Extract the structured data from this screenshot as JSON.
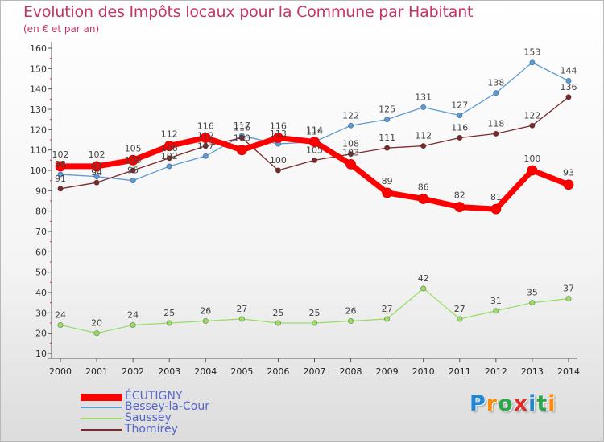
{
  "chart_data": {
    "type": "line",
    "title": "Evolution des Impôts locaux pour la Commune par Habitant",
    "subtitle": "(en € et par an)",
    "x": [
      "2000",
      "2001",
      "2002",
      "2003",
      "2004",
      "2005",
      "2006",
      "2007",
      "2008",
      "2009",
      "2010",
      "2011",
      "2012",
      "2013",
      "2014"
    ],
    "ylim": [
      10,
      160
    ],
    "yticks": [
      10,
      20,
      30,
      40,
      50,
      60,
      70,
      80,
      90,
      100,
      110,
      120,
      130,
      140,
      150,
      160
    ],
    "grid": false,
    "legend_position": "bottom-left",
    "series": [
      {
        "name": "ÉCUTIGNY",
        "color": "#ff0000",
        "values": [
          102,
          102,
          105,
          112,
          116,
          110,
          116,
          114,
          103,
          89,
          86,
          82,
          81,
          100,
          93
        ]
      },
      {
        "name": "Bessey-la-Cour",
        "color": "#5b9bd5",
        "values": [
          98,
          97,
          95,
          102,
          107,
          117,
          113,
          114,
          122,
          125,
          131,
          127,
          138,
          153,
          144
        ]
      },
      {
        "name": "Saussey",
        "color": "#99dd66",
        "values": [
          24,
          20,
          24,
          25,
          26,
          27,
          25,
          25,
          26,
          27,
          42,
          27,
          31,
          35,
          37
        ]
      },
      {
        "name": "Thomirey",
        "color": "#7a2a2a",
        "values": [
          91,
          94,
          100,
          106,
          112,
          116,
          100,
          105,
          108,
          111,
          112,
          116,
          118,
          122,
          136
        ]
      }
    ],
    "data_labels": {
      "ÉCUTIGNY": [
        "102",
        "102",
        "105",
        "112",
        "116",
        "110",
        "116",
        "114",
        "103",
        "89",
        "86",
        "82",
        "81",
        "100",
        "93"
      ],
      "Bessey-la-Cour": [
        "98",
        "97",
        "95",
        "102",
        "107",
        "117",
        "113",
        "114",
        "122",
        "125",
        "131",
        "127",
        "138",
        "153",
        "144"
      ],
      "Saussey": [
        "24",
        "20",
        "24",
        "25",
        "26",
        "27",
        "25",
        "25",
        "26",
        "27",
        "42",
        "27",
        "31",
        "35",
        "37"
      ],
      "Thomirey": [
        "91",
        "94",
        "100",
        "106",
        "112",
        "116",
        "100",
        "105",
        "108",
        "111",
        "112",
        "116",
        "118",
        "122",
        "136"
      ]
    }
  },
  "brand": {
    "text": "Proxiti",
    "letter_colors": [
      "#1e88d6",
      "#ff8a00",
      "#2aa84a",
      "#e02a2a",
      "#1e88d6",
      "#2aa84a",
      "#ff8a00"
    ]
  }
}
